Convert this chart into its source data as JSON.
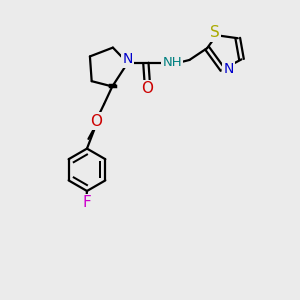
{
  "bg_color": "#ebebeb",
  "atom_colors": {
    "N": "#0000cc",
    "NH": "#008080",
    "O": "#cc0000",
    "S": "#aaaa00",
    "F": "#cc00cc",
    "C": "#000000"
  },
  "bond_color": "#000000",
  "font_size": 10,
  "fig_size": [
    3.0,
    3.0
  ],
  "dpi": 100,
  "xlim": [
    0,
    10
  ],
  "ylim": [
    0,
    10
  ]
}
